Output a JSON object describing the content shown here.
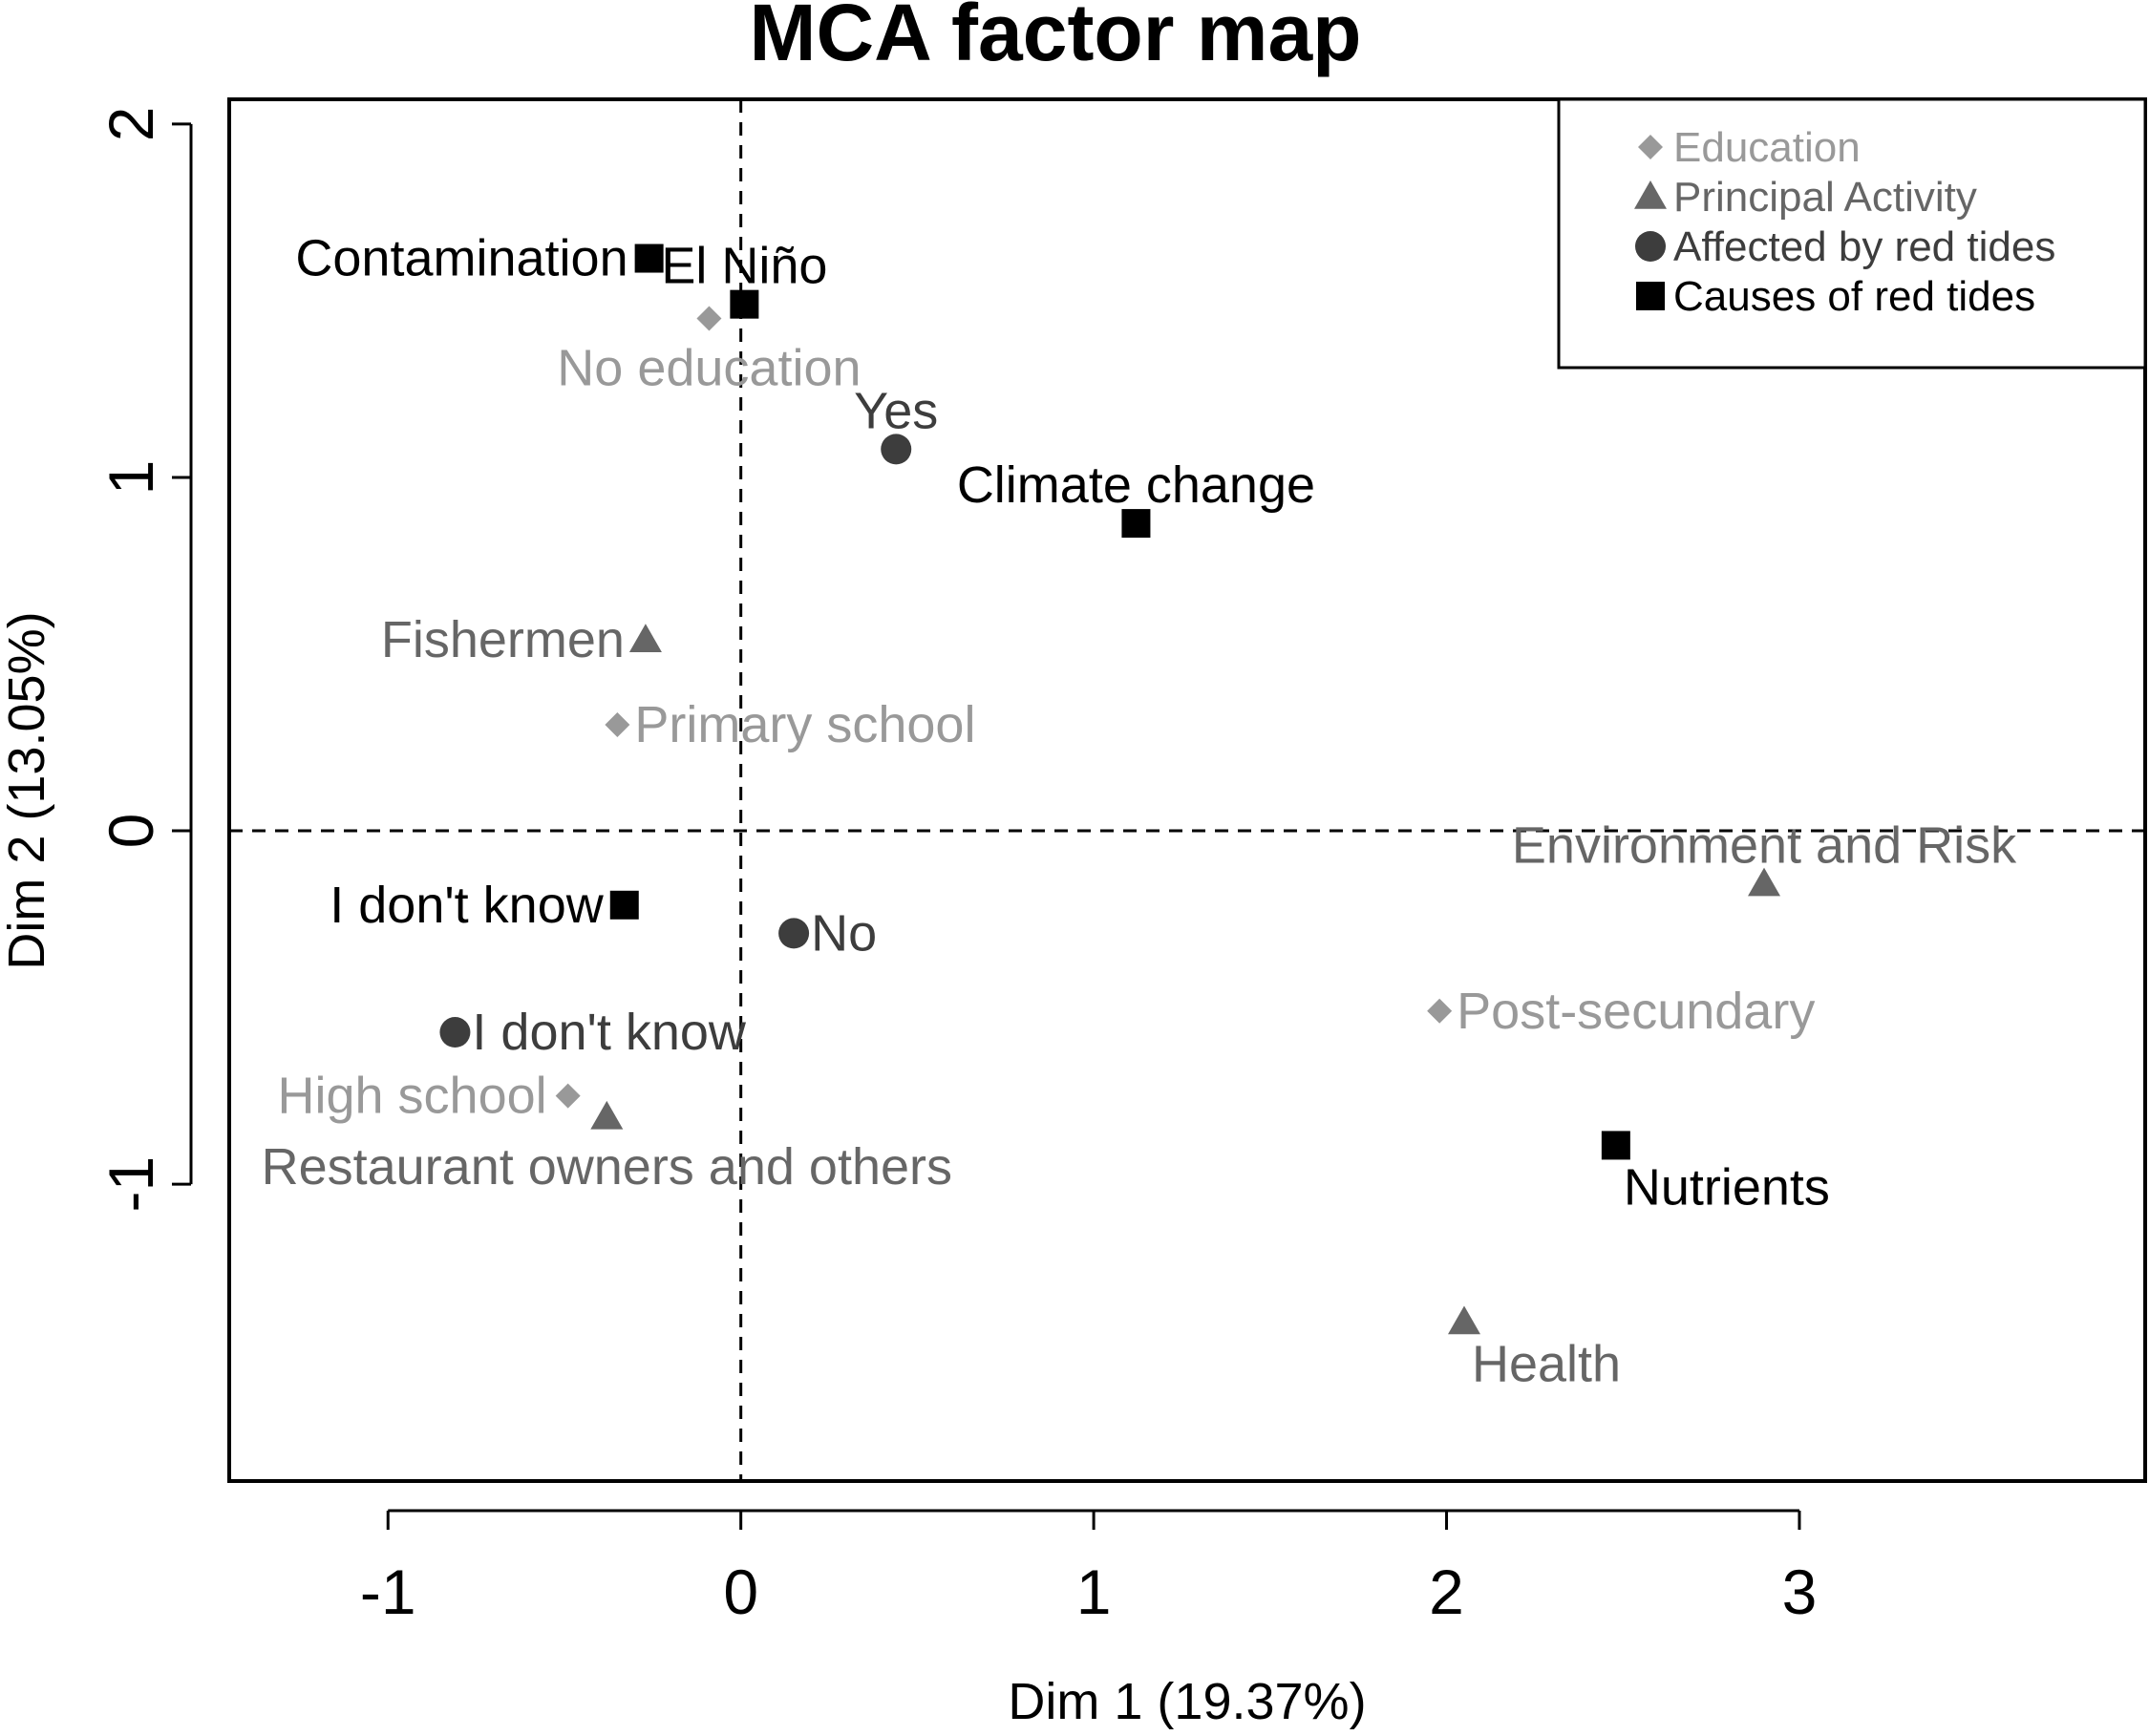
{
  "chart_data": {
    "type": "scatter",
    "title": "MCA factor map",
    "xlabel": "Dim 1 (19.37%)",
    "ylabel": "Dim 2 (13.05%)",
    "xlim": [
      -1.45,
      3.98
    ],
    "ylim": [
      -1.84,
      2.07
    ],
    "xticks": [
      -1,
      0,
      1,
      2,
      3
    ],
    "yticks": [
      -1,
      0,
      1,
      2
    ],
    "reference_lines": {
      "x": 0,
      "y": 0,
      "style": "dashed"
    },
    "legend_position": "top-right",
    "groups": [
      {
        "name": "Education",
        "marker": "diamond",
        "color": "#999999"
      },
      {
        "name": "Principal Activity",
        "marker": "triangle",
        "color": "#666666"
      },
      {
        "name": "Affected by red tides",
        "marker": "circle",
        "color": "#3d3d3d"
      },
      {
        "name": "Causes of red tides",
        "marker": "square",
        "color": "#000000"
      }
    ],
    "points": [
      {
        "label": "No education",
        "group": "Education",
        "x": -0.09,
        "y": 1.45,
        "anchor": "below"
      },
      {
        "label": "Primary school",
        "group": "Education",
        "x": -0.35,
        "y": 0.3,
        "anchor": "right"
      },
      {
        "label": "High school",
        "group": "Education",
        "x": -0.49,
        "y": -0.75,
        "anchor": "left"
      },
      {
        "label": "Post-secundary",
        "group": "Education",
        "x": 1.98,
        "y": -0.51,
        "anchor": "right"
      },
      {
        "label": "Fishermen",
        "group": "Principal Activity",
        "x": -0.27,
        "y": 0.54,
        "anchor": "left"
      },
      {
        "label": "Environment and Risk",
        "group": "Principal Activity",
        "x": 2.9,
        "y": -0.15,
        "anchor": "above"
      },
      {
        "label": "Restaurant owners and others",
        "group": "Principal Activity",
        "x": -0.38,
        "y": -0.81,
        "anchor": "below"
      },
      {
        "label": "Health",
        "group": "Principal Activity",
        "x": 2.05,
        "y": -1.39,
        "anchor": "below-right"
      },
      {
        "label": "Yes",
        "group": "Affected by red tides",
        "x": 0.44,
        "y": 1.08,
        "anchor": "above"
      },
      {
        "label": "No",
        "group": "Affected by red tides",
        "x": 0.15,
        "y": -0.29,
        "anchor": "right"
      },
      {
        "label": "I don't know",
        "group": "Affected by red tides",
        "x": -0.81,
        "y": -0.57,
        "anchor": "right"
      },
      {
        "label": "Contamination",
        "group": "Causes of red tides",
        "x": -0.26,
        "y": 1.62,
        "anchor": "left"
      },
      {
        "label": "El Niño",
        "group": "Causes of red tides",
        "x": 0.01,
        "y": 1.49,
        "anchor": "above"
      },
      {
        "label": "Climate change",
        "group": "Causes of red tides",
        "x": 1.12,
        "y": 0.87,
        "anchor": "above"
      },
      {
        "label": "I don't know",
        "group": "Causes of red tides",
        "x": -0.33,
        "y": -0.21,
        "anchor": "left"
      },
      {
        "label": "Nutrients",
        "group": "Causes of red tides",
        "x": 2.48,
        "y": -0.89,
        "anchor": "below-right"
      }
    ]
  }
}
